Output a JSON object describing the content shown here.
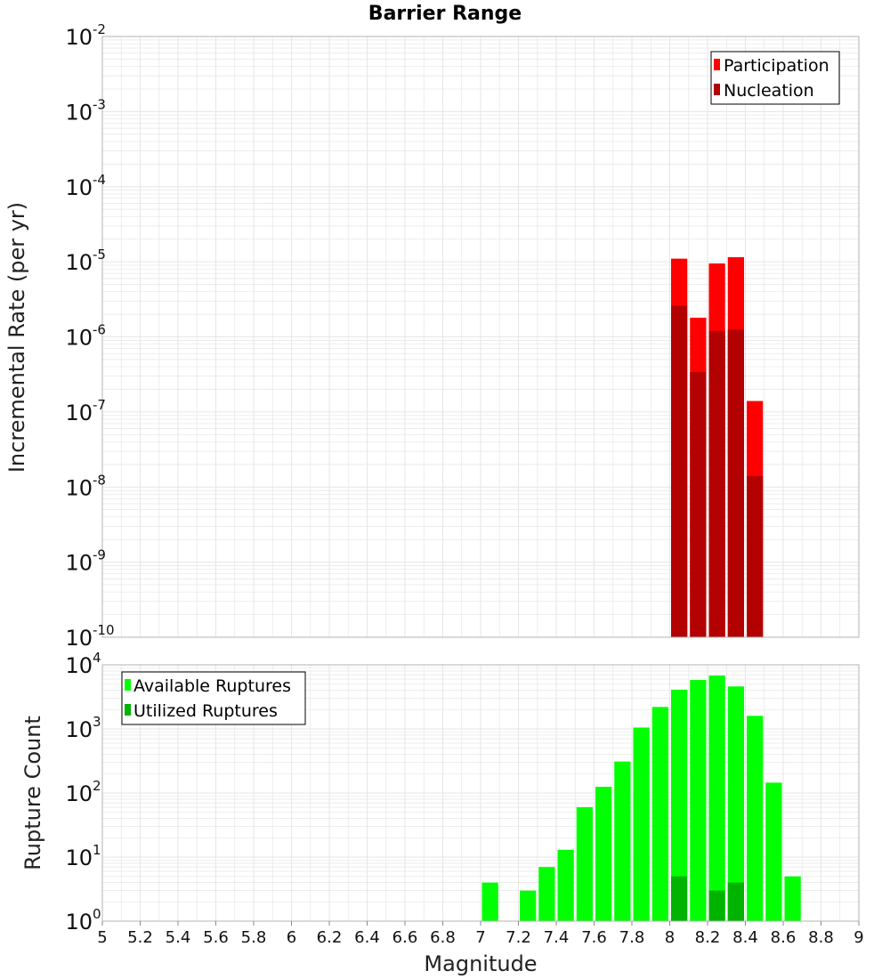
{
  "colors": {
    "participation": "#ff0000",
    "nucleation": "#b30000",
    "available": "#00ff00",
    "utilized": "#00b300",
    "grid": "#e6e6e6",
    "frame": "#b3b3b3"
  },
  "chart_data": [
    {
      "type": "bar",
      "title": "Barrier Range",
      "xlabel": "Magnitude",
      "ylabel": "Incremental Rate (per yr)",
      "yscale": "log",
      "xlim": [
        5,
        9
      ],
      "ylim_exp": [
        -10,
        -2
      ],
      "ytick_labels": [
        {
          "base": "10",
          "exp": "-10"
        },
        {
          "base": "10",
          "exp": "-9"
        },
        {
          "base": "10",
          "exp": "-8"
        },
        {
          "base": "10",
          "exp": "-7"
        },
        {
          "base": "10",
          "exp": "-6"
        },
        {
          "base": "10",
          "exp": "-5"
        },
        {
          "base": "10",
          "exp": "-4"
        },
        {
          "base": "10",
          "exp": "-3"
        },
        {
          "base": "10",
          "exp": "-2"
        }
      ],
      "legend": [
        "Participation",
        "Nucleation"
      ],
      "legend_position": "top-right",
      "bin_width": 0.1,
      "series": [
        {
          "name": "Participation",
          "x": [
            8.05,
            8.15,
            8.25,
            8.35,
            8.45
          ],
          "values": [
            1.1e-05,
            1.8e-06,
            9.5e-06,
            1.15e-05,
            1.4e-07
          ]
        },
        {
          "name": "Nucleation",
          "x": [
            8.05,
            8.15,
            8.25,
            8.35,
            8.45
          ],
          "values": [
            2.6e-06,
            3.4e-07,
            1.2e-06,
            1.25e-06,
            1.4e-08
          ]
        }
      ]
    },
    {
      "type": "bar",
      "xlabel": "Magnitude",
      "ylabel": "Rupture Count",
      "yscale": "log",
      "xlim": [
        5,
        9
      ],
      "ylim_exp": [
        0,
        4
      ],
      "ytick_labels": [
        {
          "base": "10",
          "exp": "0"
        },
        {
          "base": "10",
          "exp": "1"
        },
        {
          "base": "10",
          "exp": "2"
        },
        {
          "base": "10",
          "exp": "3"
        },
        {
          "base": "10",
          "exp": "4"
        }
      ],
      "xtick_labels": [
        "5",
        "5.2",
        "5.4",
        "5.6",
        "5.8",
        "6",
        "6.2",
        "6.4",
        "6.6",
        "6.8",
        "7",
        "7.2",
        "7.4",
        "7.6",
        "7.8",
        "8",
        "8.2",
        "8.4",
        "8.6",
        "8.8",
        "9"
      ],
      "legend": [
        "Available Ruptures",
        "Utilized Ruptures"
      ],
      "legend_position": "top-left",
      "bin_width": 0.1,
      "series": [
        {
          "name": "Available Ruptures",
          "x": [
            7.05,
            7.25,
            7.35,
            7.45,
            7.55,
            7.65,
            7.75,
            7.85,
            7.95,
            8.05,
            8.15,
            8.25,
            8.35,
            8.45,
            8.55,
            8.65
          ],
          "values": [
            4,
            3,
            7,
            13,
            60,
            125,
            310,
            1050,
            2200,
            4100,
            5800,
            6800,
            4600,
            1600,
            145,
            5
          ]
        },
        {
          "name": "Utilized Ruptures",
          "x": [
            8.05,
            8.15,
            8.25,
            8.35,
            8.45
          ],
          "values": [
            5,
            1,
            3,
            4,
            1
          ]
        }
      ]
    }
  ]
}
